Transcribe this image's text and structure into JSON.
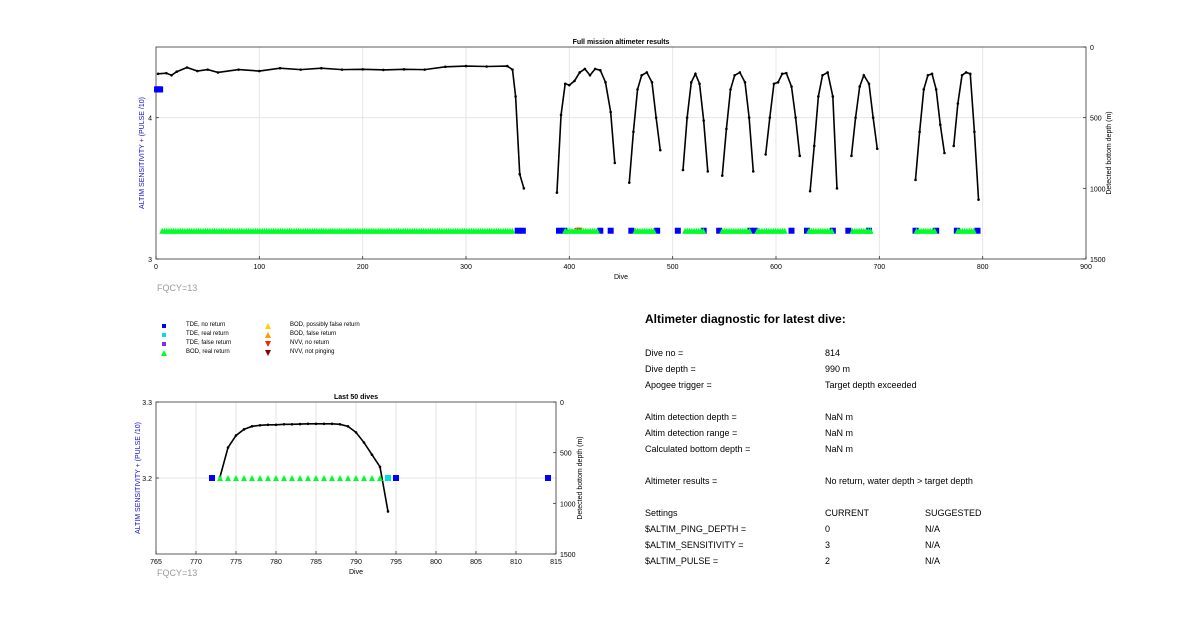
{
  "colors": {
    "axis_blue": "#1010cc",
    "fqcy_gray": "#9a9a9a",
    "tde_no_return": "#0000ff",
    "tde_real_return": "#00e0e0",
    "tde_false_return": "#7a2ef0",
    "bod_real_return": "#00ff2a",
    "bod_possibly_false": "#ffd000",
    "bod_false_return": "#ff9900",
    "nvv_no_return": "#ff2000",
    "nvv_not_pinging": "#8b0000",
    "line": "#000000"
  },
  "fqcy_top": "FQCY=13",
  "fqcy_bottom": "FQCY=13",
  "legend": [
    {
      "label": "TDE, no return",
      "symbol": "square",
      "color": "#0000ff"
    },
    {
      "label": "TDE, real return",
      "symbol": "square",
      "color": "#00e0e0"
    },
    {
      "label": "TDE, false return",
      "symbol": "square",
      "color": "#7a2ef0"
    },
    {
      "label": "BOD, real return",
      "symbol": "triangle-up",
      "color": "#00ff2a"
    },
    {
      "label": "BOD, possibly false return",
      "symbol": "triangle-up",
      "color": "#ffd000"
    },
    {
      "label": "BOD, false return",
      "symbol": "triangle-up",
      "color": "#ff9900"
    },
    {
      "label": "NVV, no return",
      "symbol": "triangle-down",
      "color": "#ff2000"
    },
    {
      "label": "NVV, not pinging",
      "symbol": "triangle-down",
      "color": "#8b0000"
    }
  ],
  "diagnostic": {
    "title": "Altimeter diagnostic for latest dive:",
    "rows": [
      {
        "label": "Dive no =",
        "value": "814"
      },
      {
        "label": "Dive depth =",
        "value": "990 m"
      },
      {
        "label": "Apogee trigger =",
        "value": "Target depth exceeded"
      },
      {
        "label": "Altim detection depth =",
        "value": "NaN m"
      },
      {
        "label": "Altim detection range =",
        "value": "NaN m"
      },
      {
        "label": "Calculated bottom depth =",
        "value": "NaN m"
      },
      {
        "label": "Altimeter results =",
        "value": "No return, water depth > target depth"
      }
    ],
    "settings_header": {
      "label": "Settings",
      "current": "CURRENT",
      "suggested": "SUGGESTED"
    },
    "settings": [
      {
        "label": "$ALTIM_PING_DEPTH =",
        "current": "0",
        "suggested": "N/A"
      },
      {
        "label": "$ALTIM_SENSITIVITY =",
        "current": "3",
        "suggested": "N/A"
      },
      {
        "label": "$ALTIM_PULSE =",
        "current": "2",
        "suggested": "N/A"
      }
    ]
  },
  "chart_data": [
    {
      "type": "line",
      "title": "Full mission altimeter results",
      "xlabel": "Dive",
      "ylabel_left": "ALTIM SENSITIVITY + (PULSE /10)",
      "ylabel_right": "Detected bottom depth (m)",
      "xlim": [
        0,
        900
      ],
      "xticks": [
        "0",
        "100",
        "200",
        "300",
        "400",
        "500",
        "600",
        "700",
        "800",
        "900"
      ],
      "ylim_left": [
        3,
        4.5
      ],
      "yticks_left": [
        "3",
        "4"
      ],
      "ylim_right_reversed": [
        0,
        1500
      ],
      "yticks_right": [
        "0",
        "500",
        "1000",
        "1500"
      ],
      "grid": true,
      "series": [
        {
          "marker": "dot-line",
          "axis": "right",
          "segments": [
            [
              [
                2,
                190
              ],
              [
                10,
                185
              ],
              [
                15,
                200
              ],
              [
                20,
                175
              ],
              [
                30,
                145
              ],
              [
                40,
                170
              ],
              [
                50,
                160
              ],
              [
                60,
                180
              ],
              [
                80,
                160
              ],
              [
                100,
                170
              ],
              [
                120,
                150
              ],
              [
                140,
                160
              ],
              [
                160,
                150
              ],
              [
                180,
                160
              ],
              [
                200,
                158
              ],
              [
                220,
                162
              ],
              [
                240,
                158
              ],
              [
                260,
                160
              ],
              [
                280,
                140
              ],
              [
                300,
                135
              ],
              [
                320,
                138
              ],
              [
                340,
                135
              ],
              [
                345,
                160
              ],
              [
                348,
                350
              ],
              [
                352,
                900
              ],
              [
                356,
                1000
              ]
            ],
            [
              [
                388,
                1030
              ],
              [
                392,
                480
              ],
              [
                396,
                260
              ],
              [
                400,
                270
              ],
              [
                405,
                240
              ],
              [
                410,
                180
              ],
              [
                415,
                155
              ],
              [
                420,
                200
              ],
              [
                425,
                155
              ],
              [
                430,
                165
              ],
              [
                435,
                250
              ],
              [
                440,
                460
              ],
              [
                444,
                820
              ]
            ],
            [
              [
                458,
                960
              ],
              [
                462,
                600
              ],
              [
                466,
                300
              ],
              [
                470,
                200
              ],
              [
                475,
                180
              ],
              [
                480,
                250
              ],
              [
                484,
                500
              ],
              [
                488,
                730
              ]
            ],
            [
              [
                510,
                870
              ],
              [
                514,
                500
              ],
              [
                518,
                250
              ],
              [
                522,
                190
              ],
              [
                526,
                260
              ],
              [
                530,
                520
              ],
              [
                534,
                880
              ]
            ],
            [
              [
                548,
                910
              ],
              [
                552,
                580
              ],
              [
                556,
                300
              ],
              [
                560,
                200
              ],
              [
                565,
                180
              ],
              [
                570,
                250
              ],
              [
                574,
                500
              ],
              [
                578,
                880
              ]
            ],
            [
              [
                590,
                760
              ],
              [
                594,
                500
              ],
              [
                598,
                260
              ],
              [
                602,
                250
              ],
              [
                606,
                190
              ],
              [
                610,
                185
              ],
              [
                615,
                280
              ],
              [
                619,
                500
              ],
              [
                623,
                770
              ]
            ],
            [
              [
                633,
                1020
              ],
              [
                637,
                700
              ],
              [
                641,
                350
              ],
              [
                645,
                200
              ],
              [
                650,
                180
              ],
              [
                655,
                350
              ],
              [
                659,
                1000
              ]
            ],
            [
              [
                673,
                770
              ],
              [
                677,
                500
              ],
              [
                681,
                280
              ],
              [
                685,
                200
              ],
              [
                690,
                260
              ],
              [
                694,
                500
              ],
              [
                698,
                720
              ]
            ],
            [
              [
                735,
                940
              ],
              [
                739,
                600
              ],
              [
                743,
                300
              ],
              [
                747,
                200
              ],
              [
                751,
                190
              ],
              [
                755,
                300
              ],
              [
                759,
                550
              ],
              [
                763,
                750
              ]
            ],
            [
              [
                772,
                700
              ],
              [
                776,
                400
              ],
              [
                780,
                200
              ],
              [
                784,
                180
              ],
              [
                788,
                190
              ],
              [
                792,
                600
              ],
              [
                796,
                1080
              ]
            ]
          ]
        },
        {
          "marker": "square",
          "axis": "left",
          "color": "#0000ff",
          "name": "TDE, no return",
          "points": [
            [
              1,
              4.2
            ],
            [
              2,
              4.2
            ],
            [
              3,
              4.2
            ],
            [
              4,
              4.2
            ],
            [
              350,
              3.2
            ],
            [
              355,
              3.2
            ],
            [
              390,
              3.2
            ],
            [
              395,
              3.2
            ],
            [
              430,
              3.2
            ],
            [
              440,
              3.2
            ],
            [
              460,
              3.2
            ],
            [
              485,
              3.2
            ],
            [
              505,
              3.2
            ],
            [
              530,
              3.2
            ],
            [
              545,
              3.2
            ],
            [
              575,
              3.2
            ],
            [
              580,
              3.2
            ],
            [
              615,
              3.2
            ],
            [
              630,
              3.2
            ],
            [
              655,
              3.2
            ],
            [
              670,
              3.2
            ],
            [
              690,
              3.2
            ],
            [
              735,
              3.2
            ],
            [
              755,
              3.2
            ],
            [
              775,
              3.2
            ],
            [
              795,
              3.2
            ]
          ]
        },
        {
          "marker": "triangle-down",
          "axis": "left",
          "color": "#ff2000",
          "name": "NVV, no return",
          "points": [
            [
              408,
              3.2
            ],
            [
              410,
              3.2
            ]
          ]
        },
        {
          "marker": "triangle-up",
          "axis": "left",
          "color": "#00ff2a",
          "name": "BOD, real return",
          "ranges": [
            [
              6,
              346
            ],
            [
              396,
              428
            ],
            [
              464,
              482
            ],
            [
              512,
              530
            ],
            [
              548,
              575
            ],
            [
              582,
              610
            ],
            [
              632,
              655
            ],
            [
              674,
              692
            ],
            [
              736,
              754
            ],
            [
              776,
              792
            ]
          ],
          "value": 3.2
        }
      ]
    },
    {
      "type": "line",
      "title": "Last 50 dives",
      "xlabel": "Dive",
      "ylabel_left": "ALTIM SENSITIVITY + (PULSE /10)",
      "ylabel_right": "Detected bottom depth (m)",
      "xlim": [
        765,
        815
      ],
      "xticks": [
        "765",
        "770",
        "775",
        "780",
        "785",
        "790",
        "795",
        "800",
        "805",
        "810",
        "815"
      ],
      "ylim_left": [
        3.1,
        3.3
      ],
      "yticks_left": [
        "3.2",
        "3.3"
      ],
      "ylim_right_reversed": [
        0,
        1500
      ],
      "yticks_right": [
        "0",
        "500",
        "1000",
        "1500"
      ],
      "grid": true,
      "series": [
        {
          "marker": "dot-line",
          "axis": "right",
          "points": [
            [
              773,
              740
            ],
            [
              774,
              450
            ],
            [
              775,
              330
            ],
            [
              776,
              270
            ],
            [
              777,
              240
            ],
            [
              778,
              230
            ],
            [
              779,
              225
            ],
            [
              780,
              225
            ],
            [
              781,
              220
            ],
            [
              782,
              220
            ],
            [
              783,
              218
            ],
            [
              784,
              215
            ],
            [
              785,
              215
            ],
            [
              786,
              215
            ],
            [
              787,
              215
            ],
            [
              788,
              220
            ],
            [
              789,
              240
            ],
            [
              790,
              300
            ],
            [
              791,
              400
            ],
            [
              792,
              520
            ],
            [
              793,
              640
            ],
            [
              794,
              1080
            ]
          ]
        },
        {
          "marker": "square",
          "axis": "left",
          "color": "#0000ff",
          "name": "TDE, no return",
          "points": [
            [
              772,
              3.2
            ],
            [
              795,
              3.2
            ],
            [
              814,
              3.2
            ]
          ]
        },
        {
          "marker": "square",
          "axis": "left",
          "color": "#00e0e0",
          "name": "TDE, real return",
          "points": [
            [
              794,
              3.2
            ]
          ]
        },
        {
          "marker": "triangle-up",
          "axis": "left",
          "color": "#00ff2a",
          "name": "BOD, real return",
          "points": [
            [
              773,
              3.2
            ],
            [
              774,
              3.2
            ],
            [
              775,
              3.2
            ],
            [
              776,
              3.2
            ],
            [
              777,
              3.2
            ],
            [
              778,
              3.2
            ],
            [
              779,
              3.2
            ],
            [
              780,
              3.2
            ],
            [
              781,
              3.2
            ],
            [
              782,
              3.2
            ],
            [
              783,
              3.2
            ],
            [
              784,
              3.2
            ],
            [
              785,
              3.2
            ],
            [
              786,
              3.2
            ],
            [
              787,
              3.2
            ],
            [
              788,
              3.2
            ],
            [
              789,
              3.2
            ],
            [
              790,
              3.2
            ],
            [
              791,
              3.2
            ],
            [
              792,
              3.2
            ],
            [
              793,
              3.2
            ]
          ]
        }
      ]
    }
  ]
}
